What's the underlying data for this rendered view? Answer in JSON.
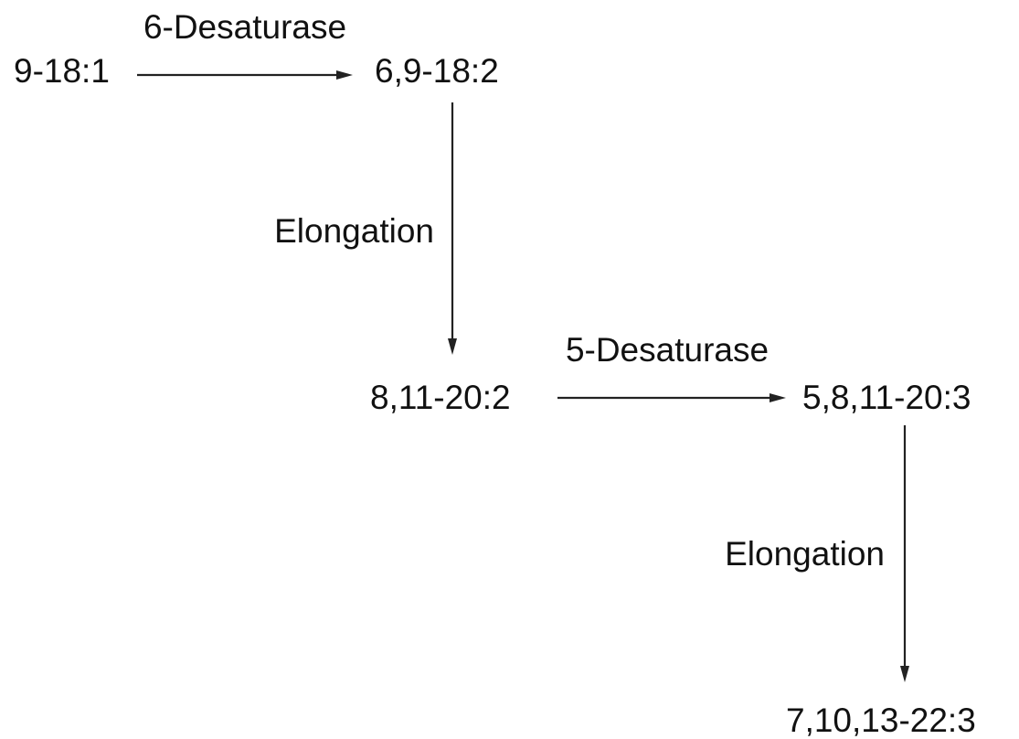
{
  "nodes": [
    {
      "label": "9-18:1"
    },
    {
      "label": "6,9-18:2"
    },
    {
      "label": "8,11-20:2"
    },
    {
      "label": "5,8,11-20:3"
    },
    {
      "label": "7,10,13-22:3"
    }
  ],
  "edges": [
    {
      "label": "6-Desaturase"
    },
    {
      "label": "Elongation"
    },
    {
      "label": "5-Desaturase"
    },
    {
      "label": "Elongation"
    }
  ]
}
